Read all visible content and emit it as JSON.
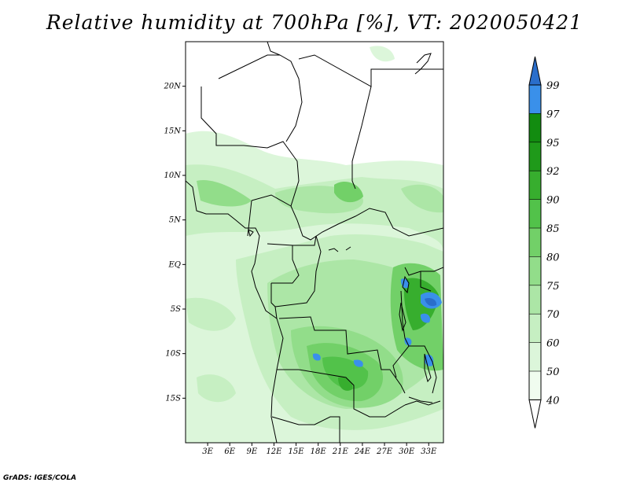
{
  "title": "Relative humidity at 700hPa [%], VT: 2020050421",
  "credit": "GrADS: IGES/COLA",
  "chart_data": {
    "type": "heatmap",
    "variable": "Relative humidity",
    "level": "700hPa",
    "units": "%",
    "valid_time": "2020050421",
    "lon_range": [
      0,
      35
    ],
    "lat_range": [
      -20,
      25
    ],
    "x_ticks": [
      "3E",
      "6E",
      "9E",
      "12E",
      "15E",
      "18E",
      "21E",
      "24E",
      "27E",
      "30E",
      "33E"
    ],
    "y_ticks": [
      "20N",
      "15N",
      "10N",
      "5N",
      "EQ",
      "5S",
      "10S",
      "15S"
    ],
    "levels": [
      {
        "label": "40",
        "color": "#f0fcef"
      },
      {
        "label": "50",
        "color": "#dcf6da"
      },
      {
        "label": "60",
        "color": "#c6efc2"
      },
      {
        "label": "70",
        "color": "#ace6a6"
      },
      {
        "label": "75",
        "color": "#92dd8a"
      },
      {
        "label": "80",
        "color": "#72d068"
      },
      {
        "label": "85",
        "color": "#52c24a"
      },
      {
        "label": "90",
        "color": "#37ae2e"
      },
      {
        "label": "92",
        "color": "#1f9a1a"
      },
      {
        "label": "95",
        "color": "#128c10"
      },
      {
        "label": "97",
        "color": "#3a90ea"
      },
      {
        "label": "99",
        "color": "#2a6ecb"
      }
    ],
    "above_color": "#2a6ecb"
  }
}
